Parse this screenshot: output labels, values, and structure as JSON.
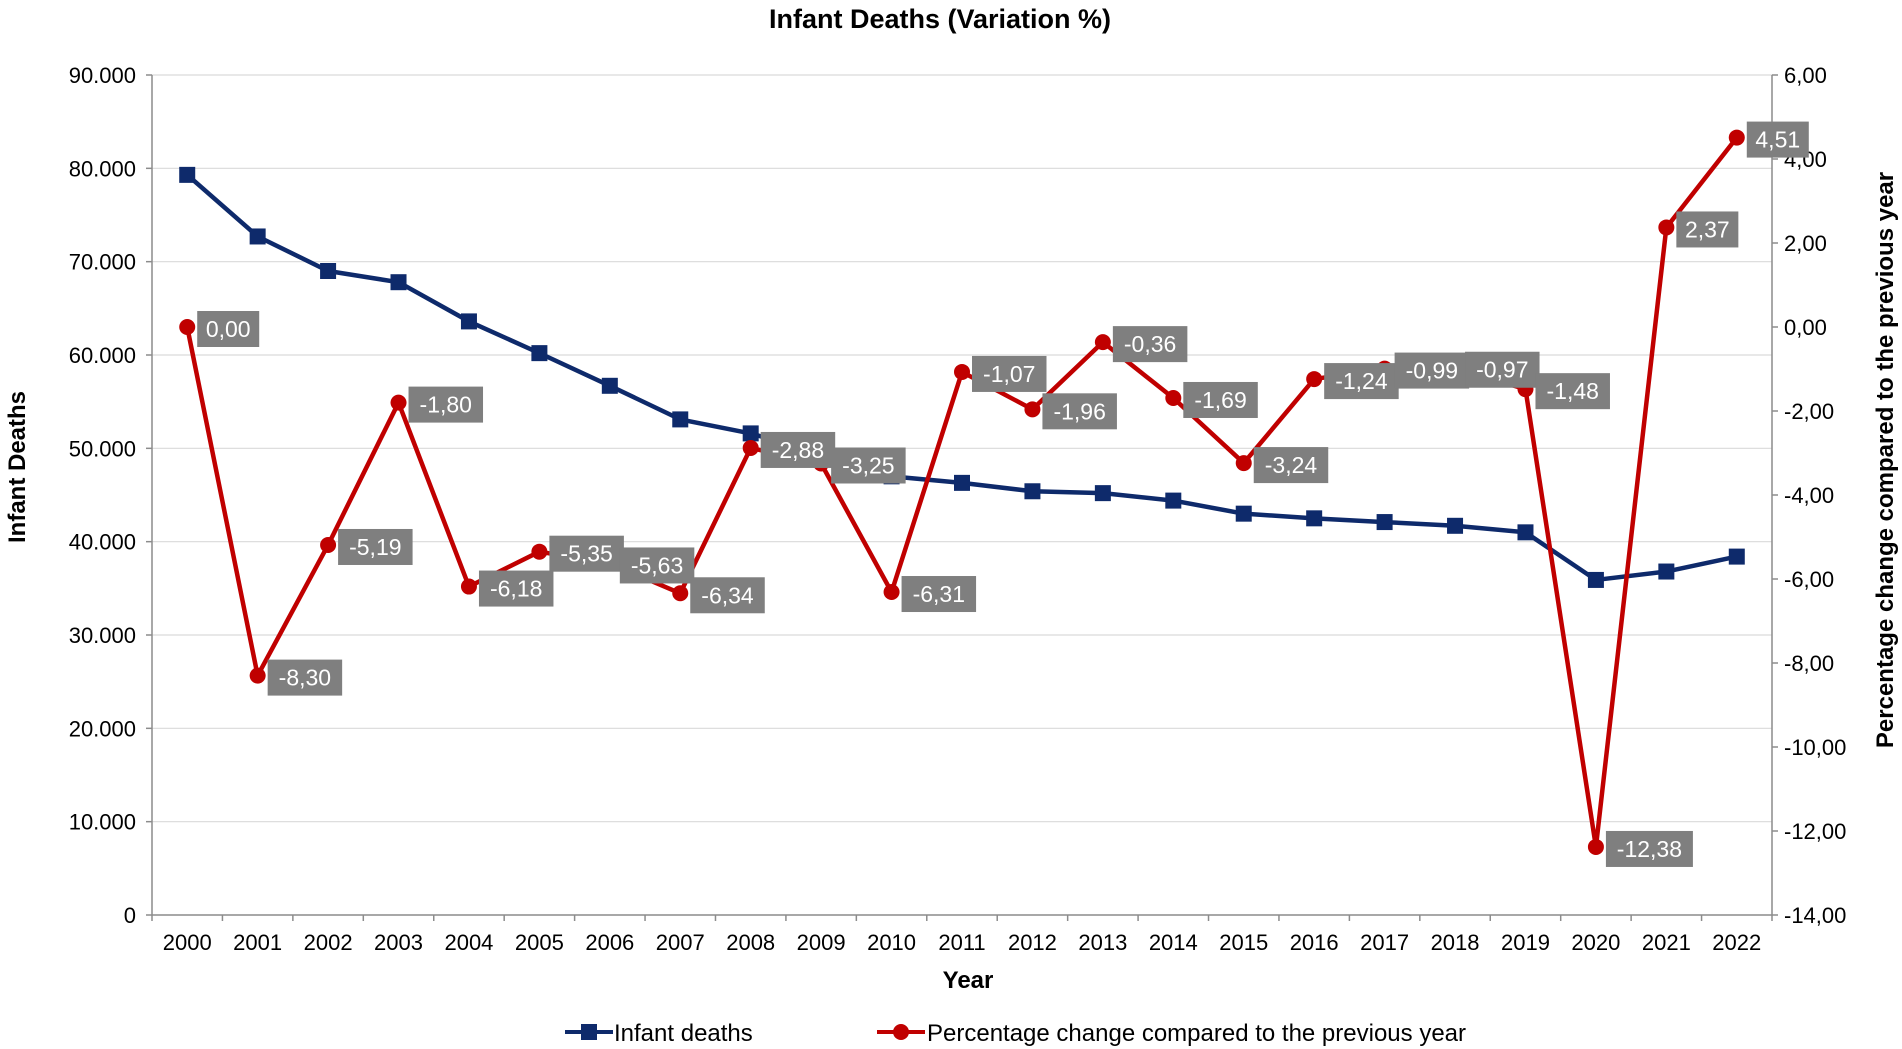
{
  "chart_data": {
    "type": "line",
    "title": "Infant Deaths (Variation %)",
    "xlabel": "Year",
    "ylabel": "Infant Deaths",
    "y2label": "Percentage change compared to the previous year",
    "categories": [
      "2000",
      "2001",
      "2002",
      "2003",
      "2004",
      "2005",
      "2006",
      "2007",
      "2008",
      "2009",
      "2010",
      "2011",
      "2012",
      "2013",
      "2014",
      "2015",
      "2016",
      "2017",
      "2018",
      "2019",
      "2020",
      "2021",
      "2022"
    ],
    "ylim": [
      0,
      90000
    ],
    "y2lim": [
      -14,
      6
    ],
    "yticks": [
      0,
      10000,
      20000,
      30000,
      40000,
      50000,
      60000,
      70000,
      80000,
      90000
    ],
    "yticklabels": [
      "0",
      "10.000",
      "20.000",
      "30.000",
      "40.000",
      "50.000",
      "60.000",
      "70.000",
      "80.000",
      "90.000"
    ],
    "y2ticks": [
      6,
      4,
      2,
      0,
      -2,
      -4,
      -6,
      -8,
      -10,
      -12,
      -14
    ],
    "y2ticklabels": [
      "6,00",
      "4,00",
      "2,00",
      "0,00",
      "-2,00",
      "-4,00",
      "-6,00",
      "-8,00",
      "-10,00",
      "-12,00",
      "-14,00"
    ],
    "grid": true,
    "legend_position": "bottom",
    "series": [
      {
        "name": "Infant deaths",
        "axis": "left",
        "color": "#0e2a6b",
        "marker": "square",
        "values": [
          79300,
          72700,
          69000,
          67800,
          63600,
          60200,
          56700,
          53100,
          51600,
          49400,
          47000,
          46300,
          45400,
          45200,
          44400,
          43000,
          42500,
          42100,
          41700,
          41000,
          35900,
          36800,
          38400
        ]
      },
      {
        "name": "Percentage change compared to the previous year",
        "axis": "right",
        "color": "#c00000",
        "marker": "circle",
        "values": [
          0.0,
          -8.3,
          -5.19,
          -1.8,
          -6.18,
          -5.35,
          -5.63,
          -6.34,
          -2.88,
          -3.25,
          -6.31,
          -1.07,
          -1.96,
          -0.36,
          -1.69,
          -3.24,
          -1.24,
          -0.99,
          -0.97,
          -1.48,
          -12.38,
          2.37,
          4.51
        ],
        "data_labels": [
          "0,00",
          "-8,30",
          "-5,19",
          "-1,80",
          "-6,18",
          "-5,35",
          "-5,63",
          "-6,34",
          "-2,88",
          "-3,25",
          "-6,31",
          "-1,07",
          "-1,96",
          "-0,36",
          "-1,69",
          "-3,24",
          "-1,24",
          "-0,99",
          "-0,97",
          "-1,48",
          "-12,38",
          "2,37",
          "4,51"
        ]
      }
    ]
  },
  "colors": {
    "deaths_line": "#0e2a6b",
    "percent_line": "#c00000",
    "label_box": "#7f7f7f",
    "gridline": "#d9d9d9"
  }
}
